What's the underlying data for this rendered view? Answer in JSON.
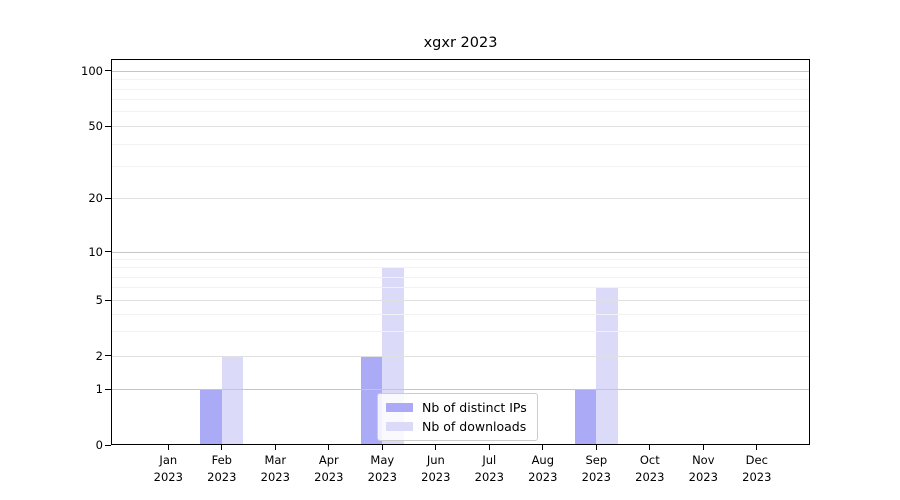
{
  "chart_data": {
    "type": "bar",
    "title": "xgxr 2023",
    "xlabel": "",
    "ylabel": "",
    "categories": [
      "Jan 2023",
      "Feb 2023",
      "Mar 2023",
      "Apr 2023",
      "May 2023",
      "Jun 2023",
      "Jul 2023",
      "Aug 2023",
      "Sep 2023",
      "Oct 2023",
      "Nov 2023",
      "Dec 2023"
    ],
    "series": [
      {
        "name": "Nb of distinct IPs",
        "color": "#aaaaf7",
        "values": [
          0,
          1,
          0,
          0,
          2,
          0,
          0,
          0,
          1,
          0,
          0,
          0
        ]
      },
      {
        "name": "Nb of downloads",
        "color": "#dbdbf9",
        "values": [
          0,
          2,
          0,
          0,
          8,
          0,
          0,
          0,
          6,
          0,
          0,
          0
        ]
      }
    ],
    "yscale": "log-with-zero",
    "ylim": [
      0,
      110
    ],
    "y_major_ticks": [
      0,
      1,
      2,
      5,
      10,
      20,
      50,
      100
    ],
    "y_minor_ticks": [
      3,
      4,
      6,
      7,
      8,
      9,
      30,
      40,
      60,
      70,
      80,
      90
    ],
    "grid": "horizontal",
    "legend_position": "lower-center",
    "colors": {
      "axis": "#000000",
      "grid_major_decade": "#c6c6c6",
      "grid_major": "#e0e0e0",
      "grid_minor": "#f2f2f2",
      "legend_border": "#cccccc"
    }
  }
}
